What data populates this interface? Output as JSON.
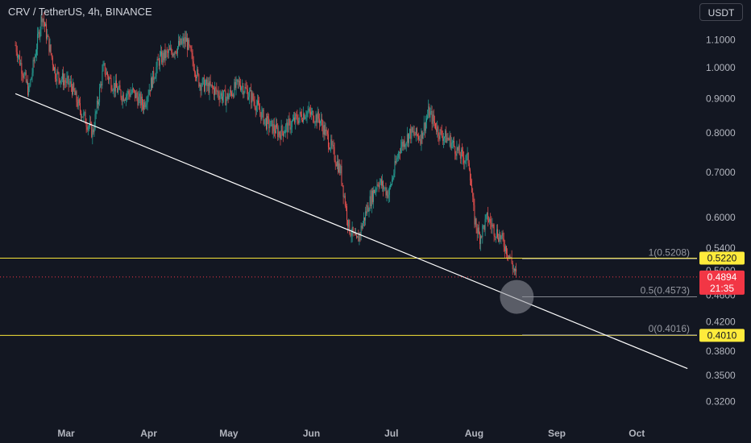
{
  "header": {
    "symbol_title": "CRV / TetherUS, 4h, BINANCE",
    "currency_button": "USDT"
  },
  "colors": {
    "background": "#131722",
    "up": "#26a69a",
    "down": "#ef5350",
    "level_line": "#f7e43a",
    "trendline": "#ffffff",
    "axis_text": "#b2b5be",
    "fib_line": "#9598a1",
    "current_price_tag": "#f23645",
    "level_tag": "#ffeb3b"
  },
  "chart_data": {
    "type": "candlestick",
    "title": "CRV / TetherUS, 4h, BINANCE",
    "y_scale": "log",
    "ylim": [
      0.295,
      1.26
    ],
    "y_ticks": [
      "1.1000",
      "1.0000",
      "0.9000",
      "0.8000",
      "0.7000",
      "0.6000",
      "0.5400",
      "0.5000",
      "0.4600",
      "0.4200",
      "0.3800",
      "0.3500",
      "0.3200"
    ],
    "x_ticks": [
      "Mar",
      "Apr",
      "May",
      "Jun",
      "Jul",
      "Aug",
      "Sep",
      "Oct"
    ],
    "price_path": [
      [
        "Feb 10",
        1.08
      ],
      [
        "Feb 15",
        0.92
      ],
      [
        "Feb 20",
        1.2
      ],
      [
        "Feb 25",
        0.98
      ],
      [
        "Mar 3",
        0.94
      ],
      [
        "Mar 6",
        0.87
      ],
      [
        "Mar 11",
        0.8
      ],
      [
        "Mar 15",
        1.0
      ],
      [
        "Mar 18",
        0.95
      ],
      [
        "Mar 22",
        0.91
      ],
      [
        "Mar 26",
        0.92
      ],
      [
        "Mar 30",
        0.88
      ],
      [
        "Apr 5",
        1.03
      ],
      [
        "Apr 10",
        1.06
      ],
      [
        "Apr 15",
        1.1
      ],
      [
        "Apr 20",
        0.95
      ],
      [
        "Apr 25",
        0.93
      ],
      [
        "Apr 30",
        0.9
      ],
      [
        "May 5",
        0.95
      ],
      [
        "May 10",
        0.9
      ],
      [
        "May 15",
        0.83
      ],
      [
        "May 20",
        0.8
      ],
      [
        "May 25",
        0.83
      ],
      [
        "May 30",
        0.86
      ],
      [
        "Jun 4",
        0.84
      ],
      [
        "Jun 8",
        0.77
      ],
      [
        "Jun 12",
        0.7
      ],
      [
        "Jun 15",
        0.58
      ],
      [
        "Jun 18",
        0.55
      ],
      [
        "Jun 22",
        0.62
      ],
      [
        "Jun 26",
        0.68
      ],
      [
        "Jun 30",
        0.65
      ],
      [
        "Jul 4",
        0.76
      ],
      [
        "Jul 8",
        0.8
      ],
      [
        "Jul 12",
        0.79
      ],
      [
        "Jul 15",
        0.86
      ],
      [
        "Jul 19",
        0.8
      ],
      [
        "Jul 23",
        0.78
      ],
      [
        "Jul 27",
        0.74
      ],
      [
        "Jul 30",
        0.73
      ],
      [
        "Aug 1",
        0.6
      ],
      [
        "Aug 3",
        0.56
      ],
      [
        "Aug 6",
        0.6
      ],
      [
        "Aug 8",
        0.58
      ],
      [
        "Aug 11",
        0.56
      ],
      [
        "Aug 14",
        0.53
      ],
      [
        "Aug 16",
        0.5
      ],
      [
        "Aug 17",
        0.4894
      ]
    ],
    "horizontal_levels": [
      {
        "name": "resistance",
        "value": 0.522,
        "label": "0.5220"
      },
      {
        "name": "support",
        "value": 0.401,
        "label": "0.4010"
      }
    ],
    "fibonacci": [
      {
        "ratio": "1",
        "value": 0.5208,
        "label": "1(0.5208)"
      },
      {
        "ratio": "0.5",
        "value": 0.4573,
        "label": "0.5(0.4573)"
      },
      {
        "ratio": "0",
        "value": 0.4016,
        "label": "0(0.4016)"
      }
    ],
    "trendline": {
      "from": [
        "Feb 10",
        0.915
      ],
      "to": [
        "Oct 20",
        0.358
      ]
    },
    "current_price": {
      "value": 0.4894,
      "label": "0.4894",
      "countdown": "21:35"
    },
    "highlight": {
      "date": "Aug 17",
      "value": 0.4573
    }
  }
}
